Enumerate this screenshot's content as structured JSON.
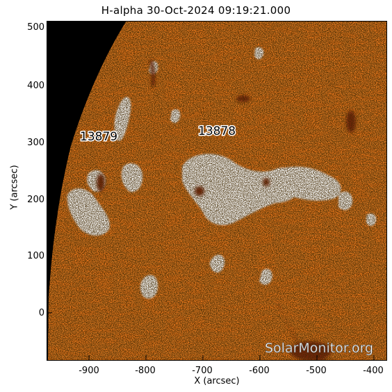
{
  "title": "H-alpha 30-Oct-2024 09:19:21.000",
  "x_axis": {
    "label": "X (arcsec)",
    "ticks": [
      "-900",
      "-800",
      "-700",
      "-600",
      "-500",
      "-400"
    ]
  },
  "y_axis": {
    "label": "Y (arcsec)",
    "ticks": [
      "500",
      "400",
      "300",
      "200",
      "100",
      "0"
    ]
  },
  "active_regions": [
    {
      "label": "13879"
    },
    {
      "label": "13878"
    }
  ],
  "watermark": "SolarMonitor.org",
  "colors": {
    "disk": "#e8781e",
    "space": "#000000",
    "plage": "#ffffff",
    "filament": "#7a2608"
  }
}
